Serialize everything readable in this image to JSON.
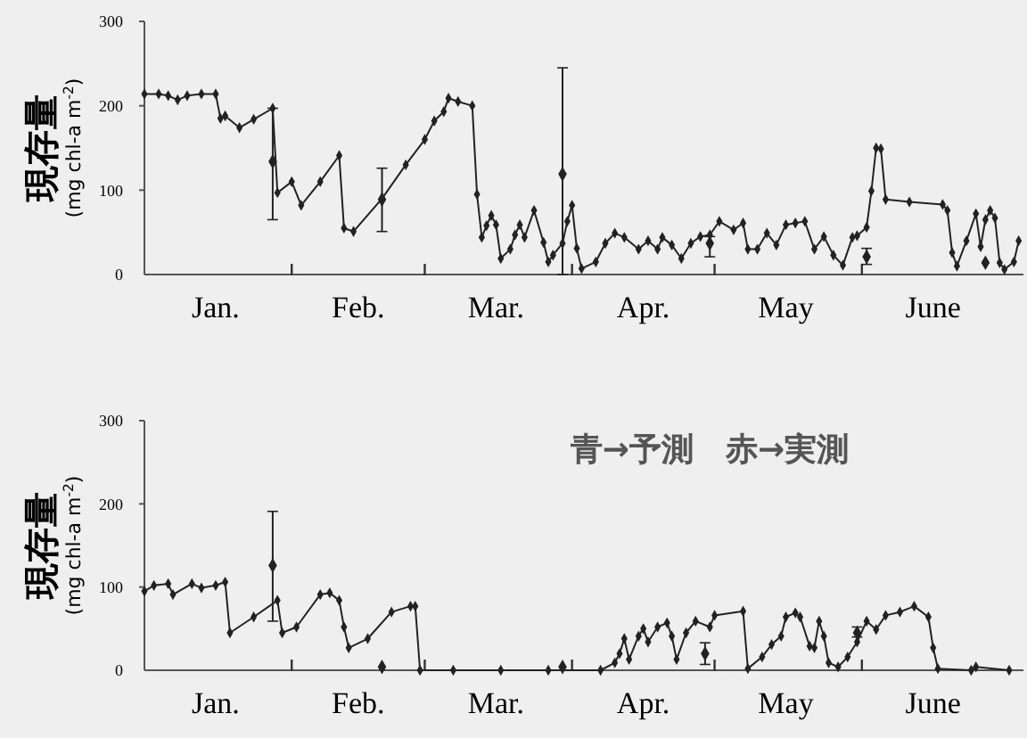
{
  "chart_data": [
    {
      "type": "line",
      "ylabel": "現存量\n(mg chl-a m$^{-2}$)",
      "xlim": [
        "--01-01",
        "--07-05"
      ],
      "ylim": [
        0,
        300
      ],
      "yticks": [
        0,
        100,
        200,
        300
      ],
      "xticks": [
        {
          "value": "--01-16",
          "label": "Jan."
        },
        {
          "value": "--02-01",
          "label": null
        },
        {
          "value": "--02-15",
          "label": "Feb."
        },
        {
          "value": "--03-01",
          "label": null
        },
        {
          "value": "--03-16",
          "label": "Mar."
        },
        {
          "value": "--04-01",
          "label": null
        },
        {
          "value": "--04-16",
          "label": "Apr."
        },
        {
          "value": "--05-01",
          "label": null
        },
        {
          "value": "--05-16",
          "label": "May"
        },
        {
          "value": "--06-01",
          "label": null
        },
        {
          "value": "--06-16",
          "label": "June"
        }
      ],
      "marker": "diamond",
      "line_style": "solid",
      "series": [
        {
          "color": "#222222",
          "x": [
            "--01-01",
            "--01-04",
            "--01-06",
            "--01-08",
            "--01-10",
            "--01-13",
            "--01-16",
            "--01-17",
            "--01-18",
            "--01-21",
            "--01-24",
            "--01-28",
            "--01-29",
            "--02-01",
            "--02-03",
            "--02-07",
            "--02-11",
            "--02-12",
            "--02-14",
            "--02-20",
            "--02-25",
            "--03-01",
            "--03-03",
            "--03-05",
            "--03-06",
            "--03-08",
            "--03-11",
            "--03-12",
            "--03-13",
            "--03-14",
            "--03-15",
            "--03-16",
            "--03-17",
            "--03-19",
            "--03-20",
            "--03-21",
            "--03-22",
            "--03-24",
            "--03-26",
            "--03-27",
            "--03-28",
            "--03-30",
            "--03-31",
            "--04-01",
            "--04-02",
            "--04-03",
            "--04-06",
            "--04-08",
            "--04-10",
            "--04-12",
            "--04-15",
            "--04-17",
            "--04-19",
            "--04-20",
            "--04-22",
            "--04-24",
            "--04-26",
            "--04-28",
            "--04-30",
            "--05-02",
            "--05-05",
            "--05-07",
            "--05-08",
            "--05-10",
            "--05-12",
            "--05-14",
            "--05-16",
            "--05-18",
            "--05-20",
            "--05-22",
            "--05-24",
            "--05-26",
            "--05-28",
            "--05-30",
            "--05-31",
            "--06-02",
            "--06-03",
            "--06-04",
            "--06-05",
            "--06-06",
            "--06-11",
            "--06-18",
            "--06-19",
            "--06-20",
            "--06-21",
            "--06-23",
            "--06-25",
            "--06-26",
            "--06-27",
            "--06-28",
            "--06-29",
            "--06-30",
            "--07-01",
            "--07-03",
            "--07-04"
          ],
          "values": [
            214,
            214,
            212,
            207,
            212,
            214,
            214,
            185,
            188,
            174,
            184,
            197,
            97,
            110,
            82,
            110,
            141,
            55,
            51,
            90,
            130,
            160,
            182,
            193,
            209,
            205,
            200,
            95,
            44,
            58,
            70,
            59,
            19,
            30,
            47,
            59,
            44,
            76,
            38,
            15,
            23,
            37,
            63,
            82,
            31,
            7,
            15,
            37,
            49,
            44,
            30,
            40,
            30,
            44,
            35,
            19,
            37,
            45,
            47,
            63,
            53,
            61,
            30,
            30,
            49,
            35,
            59,
            61,
            63,
            30,
            45,
            23,
            11,
            44,
            46,
            56,
            99,
            150,
            149,
            89,
            86,
            83,
            76,
            26,
            10,
            40,
            72,
            33,
            65,
            76,
            67,
            14,
            6,
            15,
            40
          ]
        },
        {
          "type": "scatter",
          "color": "#222222",
          "x": [
            "--01-28",
            "--02-20",
            "--03-30",
            "--04-30",
            "--06-02",
            "--06-27"
          ],
          "values": [
            134,
            89,
            119,
            37,
            21,
            14
          ],
          "errors": [
            [
              65,
              197
            ],
            [
              51,
              126
            ],
            [
              0,
              245
            ],
            [
              21,
              45
            ],
            [
              12,
              31
            ],
            null
          ]
        }
      ]
    },
    {
      "type": "line",
      "ylabel": "現存量\n(mg chl-a m$^{-2}$)",
      "xlim": [
        "--01-01",
        "--07-05"
      ],
      "ylim": [
        0,
        300
      ],
      "yticks": [
        0,
        100,
        200,
        300
      ],
      "xticks": [
        {
          "value": "--01-16",
          "label": "Jan."
        },
        {
          "value": "--02-01",
          "label": null
        },
        {
          "value": "--02-15",
          "label": "Feb."
        },
        {
          "value": "--03-01",
          "label": null
        },
        {
          "value": "--03-16",
          "label": "Mar."
        },
        {
          "value": "--04-01",
          "label": null
        },
        {
          "value": "--04-16",
          "label": "Apr."
        },
        {
          "value": "--05-01",
          "label": null
        },
        {
          "value": "--05-16",
          "label": "May"
        },
        {
          "value": "--06-01",
          "label": null
        },
        {
          "value": "--06-16",
          "label": "June"
        }
      ],
      "marker": "diamond",
      "line_style": "solid",
      "annotations": [
        "青→予測　赤→実測"
      ],
      "series": [
        {
          "color": "#222222",
          "x": [
            "--01-01",
            "--01-03",
            "--01-06",
            "--01-07",
            "--01-11",
            "--01-13",
            "--01-16",
            "--01-18",
            "--01-19",
            "--01-24",
            "--01-29",
            "--01-30",
            "--02-02",
            "--02-07",
            "--02-09",
            "--02-11",
            "--02-12",
            "--02-13",
            "--02-17",
            "--02-22",
            "--02-26",
            "--02-27",
            "--02-28",
            "--03-07",
            "--03-17",
            "--03-27",
            "--04-07",
            "--04-10",
            "--04-11",
            "--04-12",
            "--04-13",
            "--04-15",
            "--04-16",
            "--04-17",
            "--04-19",
            "--04-21",
            "--04-22",
            "--04-23",
            "--04-25",
            "--04-27",
            "--04-30",
            "--05-01",
            "--05-07",
            "--05-08",
            "--05-11",
            "--05-13",
            "--05-15",
            "--05-16",
            "--05-18",
            "--05-19",
            "--05-21",
            "--05-22",
            "--05-23",
            "--05-24",
            "--05-25",
            "--05-27",
            "--05-29",
            "--05-31",
            "--06-02",
            "--06-04",
            "--06-06",
            "--06-09",
            "--06-12",
            "--06-15",
            "--06-16",
            "--06-17",
            "--06-24",
            "--06-25",
            "--07-02"
          ],
          "values": [
            95,
            102,
            104,
            91,
            104,
            99,
            102,
            106,
            45,
            64,
            84,
            45,
            52,
            91,
            93,
            84,
            52,
            27,
            38,
            70,
            77,
            77,
            0,
            0,
            0,
            0,
            0,
            9,
            20,
            38,
            13,
            41,
            50,
            34,
            52,
            57,
            41,
            13,
            45,
            59,
            52,
            66,
            71,
            2,
            16,
            31,
            41,
            64,
            69,
            64,
            29,
            27,
            59,
            41,
            9,
            4,
            16,
            34,
            59,
            49,
            66,
            70,
            77,
            64,
            27,
            2,
            0,
            4,
            0
          ]
        },
        {
          "type": "scatter",
          "color": "#222222",
          "x": [
            "--01-28",
            "--02-20",
            "--03-30",
            "--04-29",
            "--05-31"
          ],
          "values": [
            126,
            4,
            4,
            20,
            45
          ],
          "errors": [
            [
              59,
              191
            ],
            null,
            null,
            [
              7,
              33
            ],
            [
              40,
              52
            ]
          ]
        }
      ]
    }
  ]
}
